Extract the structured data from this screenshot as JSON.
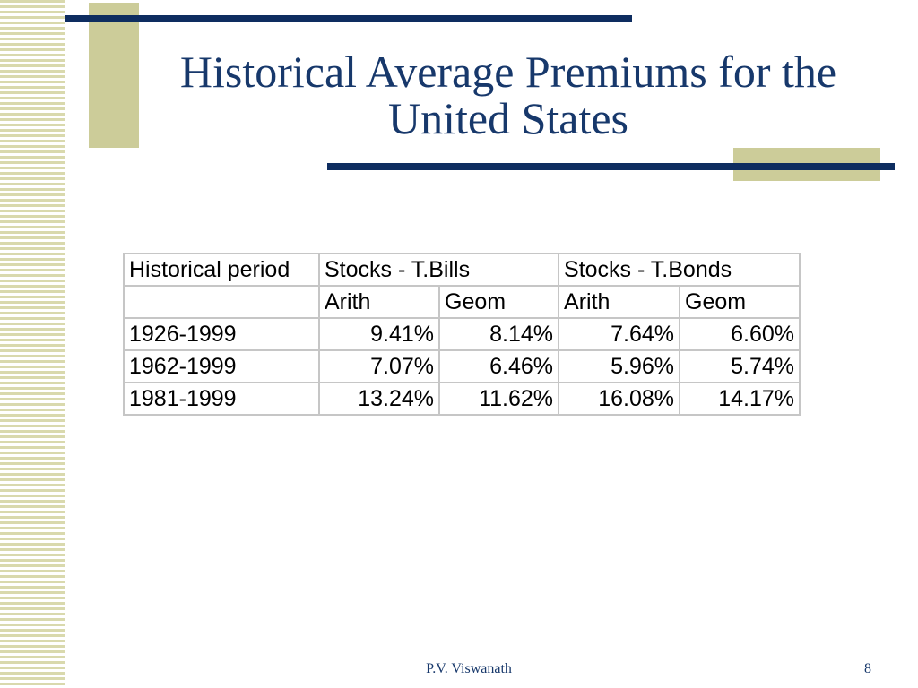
{
  "theme": {
    "navy_bar": "#0e2d60",
    "khaki_block": "#cccc99",
    "stripe": "#d9d9ad",
    "title_text": "#17386b",
    "grid_line": "#c6c6c6"
  },
  "slide": {
    "title_line1": "Historical Average Premiums for the",
    "title_line2": "United States",
    "footer_author": "P.V. Viswanath",
    "page_number": "8"
  },
  "table": {
    "header": {
      "period": "Historical period",
      "group_bills": "Stocks - T.Bills",
      "group_bonds": "Stocks - T.Bonds"
    },
    "subheader": [
      "Arith",
      "Geom",
      "Arith",
      "Geom"
    ],
    "rows": [
      {
        "period": "1926-1999",
        "values": [
          "9.41%",
          "8.14%",
          "7.64%",
          "6.60%"
        ]
      },
      {
        "period": "1962-1999",
        "values": [
          "7.07%",
          "6.46%",
          "5.96%",
          "5.74%"
        ]
      },
      {
        "period": "1981-1999",
        "values": [
          "13.24%",
          "11.62%",
          "16.08%",
          "14.17%"
        ]
      }
    ]
  }
}
